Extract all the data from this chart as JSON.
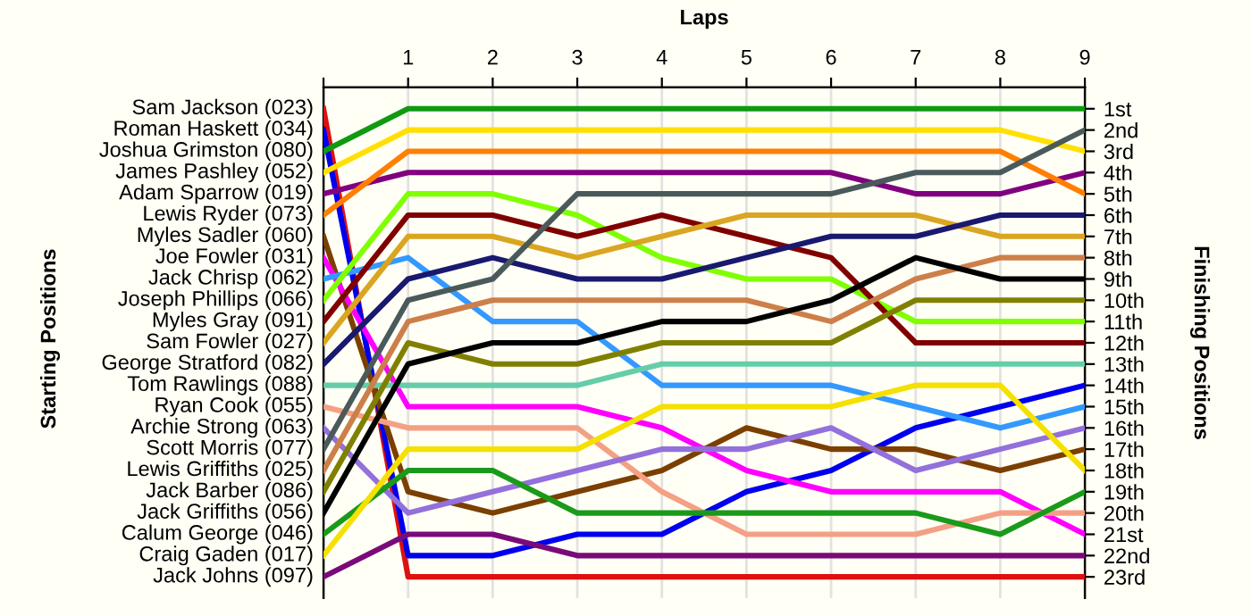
{
  "chart_data": {
    "type": "line",
    "xlabel": "Laps",
    "y2label": "Finishing Positions",
    "annotations": [
      "Starting Positions"
    ],
    "x": [
      0,
      1,
      2,
      3,
      4,
      5,
      6,
      7,
      8,
      9
    ],
    "xlim": [
      0,
      9
    ],
    "xticks": [
      {
        "value": 0,
        "label": null
      },
      1,
      2,
      3,
      4,
      5,
      6,
      7,
      8,
      9
    ],
    "y2lim": [
      24,
      0
    ],
    "y2ticks": [
      {
        "value": 1,
        "label": "1st"
      },
      {
        "value": 2,
        "label": "2nd"
      },
      {
        "value": 3,
        "label": "3rd"
      },
      {
        "value": 4,
        "label": "4th"
      },
      {
        "value": 5,
        "label": "5th"
      },
      {
        "value": 6,
        "label": "6th"
      },
      {
        "value": 7,
        "label": "7th"
      },
      {
        "value": 8,
        "label": "8th"
      },
      {
        "value": 9,
        "label": "9th"
      },
      {
        "value": 10,
        "label": "10th"
      },
      {
        "value": 11,
        "label": "11th"
      },
      {
        "value": 12,
        "label": "12th"
      },
      {
        "value": 13,
        "label": "13th"
      },
      {
        "value": 14,
        "label": "14th"
      },
      {
        "value": 15,
        "label": "15th"
      },
      {
        "value": 16,
        "label": "16th"
      },
      {
        "value": 17,
        "label": "17th"
      },
      {
        "value": 18,
        "label": "18th"
      },
      {
        "value": 19,
        "label": "19th"
      },
      {
        "value": 20,
        "label": "20th"
      },
      {
        "value": 21,
        "label": "21st"
      },
      {
        "value": 22,
        "label": "22nd"
      },
      {
        "value": 23,
        "label": "23rd"
      }
    ],
    "grid": true,
    "marker": "none",
    "line_style": "solid",
    "series": [
      {
        "name": "Sam Jackson (023)",
        "axis": "y2",
        "color": "#dd1111",
        "values": [
          1,
          23,
          23,
          23,
          23,
          23,
          23,
          23,
          23,
          23
        ]
      },
      {
        "name": "Roman Haskett (034)",
        "axis": "y2",
        "color": "#0000ee",
        "values": [
          2,
          22,
          22,
          21,
          21,
          19,
          18,
          16,
          15,
          14
        ]
      },
      {
        "name": "Joshua Grimston (080)",
        "axis": "y2",
        "color": "#119911",
        "values": [
          3,
          1,
          1,
          1,
          1,
          1,
          1,
          1,
          1,
          1
        ]
      },
      {
        "name": "James Pashley (052)",
        "axis": "y2",
        "color": "#ffe000",
        "values": [
          4,
          2,
          2,
          2,
          2,
          2,
          2,
          2,
          2,
          3
        ]
      },
      {
        "name": "Adam Sparrow (019)",
        "axis": "y2",
        "color": "#800080",
        "values": [
          5,
          4,
          4,
          4,
          4,
          4,
          4,
          5,
          5,
          4
        ]
      },
      {
        "name": "Lewis Ryder (073)",
        "axis": "y2",
        "color": "#ff7f00",
        "values": [
          6,
          3,
          3,
          3,
          3,
          3,
          3,
          3,
          3,
          5
        ]
      },
      {
        "name": "Myles Sadler (060)",
        "axis": "y2",
        "color": "#7b3f00",
        "values": [
          7,
          19,
          20,
          19,
          18,
          16,
          17,
          17,
          18,
          17
        ]
      },
      {
        "name": "Joe Fowler (031)",
        "axis": "y2",
        "color": "#ff00ff",
        "values": [
          8,
          15,
          15,
          15,
          16,
          18,
          19,
          19,
          19,
          21
        ]
      },
      {
        "name": "Jack Chrisp (062)",
        "axis": "y2",
        "color": "#3399ff",
        "values": [
          9,
          8,
          11,
          11,
          14,
          14,
          14,
          15,
          16,
          15
        ]
      },
      {
        "name": "Joseph Phillips (066)",
        "axis": "y2",
        "color": "#80ff00",
        "values": [
          10,
          5,
          5,
          6,
          8,
          9,
          9,
          11,
          11,
          11
        ]
      },
      {
        "name": "Myles Gray (091)",
        "axis": "y2",
        "color": "#800000",
        "values": [
          11,
          6,
          6,
          7,
          6,
          7,
          8,
          12,
          12,
          12
        ]
      },
      {
        "name": "Sam Fowler (027)",
        "axis": "y2",
        "color": "#daa520",
        "values": [
          12,
          7,
          7,
          8,
          7,
          6,
          6,
          6,
          7,
          7
        ]
      },
      {
        "name": "George Stratford (082)",
        "axis": "y2",
        "color": "#191970",
        "values": [
          13,
          9,
          8,
          9,
          9,
          8,
          7,
          7,
          6,
          6
        ]
      },
      {
        "name": "Tom Rawlings (088)",
        "axis": "y2",
        "color": "#66cdaa",
        "values": [
          14,
          14,
          14,
          14,
          13,
          13,
          13,
          13,
          13,
          13
        ]
      },
      {
        "name": "Ryan Cook (055)",
        "axis": "y2",
        "color": "#f4a085",
        "values": [
          15,
          16,
          16,
          16,
          19,
          21,
          21,
          21,
          20,
          20
        ]
      },
      {
        "name": "Archie Strong (063)",
        "axis": "y2",
        "color": "#9370db",
        "values": [
          16,
          20,
          19,
          18,
          17,
          17,
          16,
          18,
          17,
          16
        ]
      },
      {
        "name": "Scott Morris (077)",
        "axis": "y2",
        "color": "#4a5a5a",
        "values": [
          17,
          10,
          9,
          5,
          5,
          5,
          5,
          4,
          4,
          2
        ]
      },
      {
        "name": "Lewis Griffiths (025)",
        "axis": "y2",
        "color": "#cd7f4a",
        "values": [
          18,
          11,
          10,
          10,
          10,
          10,
          11,
          9,
          8,
          8
        ]
      },
      {
        "name": "Jack Barber (086)",
        "axis": "y2",
        "color": "#808000",
        "values": [
          19,
          12,
          13,
          13,
          12,
          12,
          12,
          10,
          10,
          10
        ]
      },
      {
        "name": "Jack Griffiths (056)",
        "axis": "y2",
        "color": "#000000",
        "values": [
          20,
          13,
          12,
          12,
          11,
          11,
          10,
          8,
          9,
          9
        ]
      },
      {
        "name": "Calum George (046)",
        "axis": "y2",
        "color": "#1a9a1a",
        "values": [
          21,
          18,
          18,
          20,
          20,
          20,
          20,
          20,
          21,
          19
        ]
      },
      {
        "name": "Craig Gaden (017)",
        "axis": "y2",
        "color": "#f5e000",
        "values": [
          22,
          17,
          17,
          17,
          15,
          15,
          15,
          14,
          14,
          18
        ]
      },
      {
        "name": "Jack Johns (097)",
        "axis": "y2",
        "color": "#7a0a7a",
        "values": [
          23,
          21,
          21,
          22,
          22,
          22,
          22,
          22,
          22,
          22
        ]
      }
    ]
  }
}
